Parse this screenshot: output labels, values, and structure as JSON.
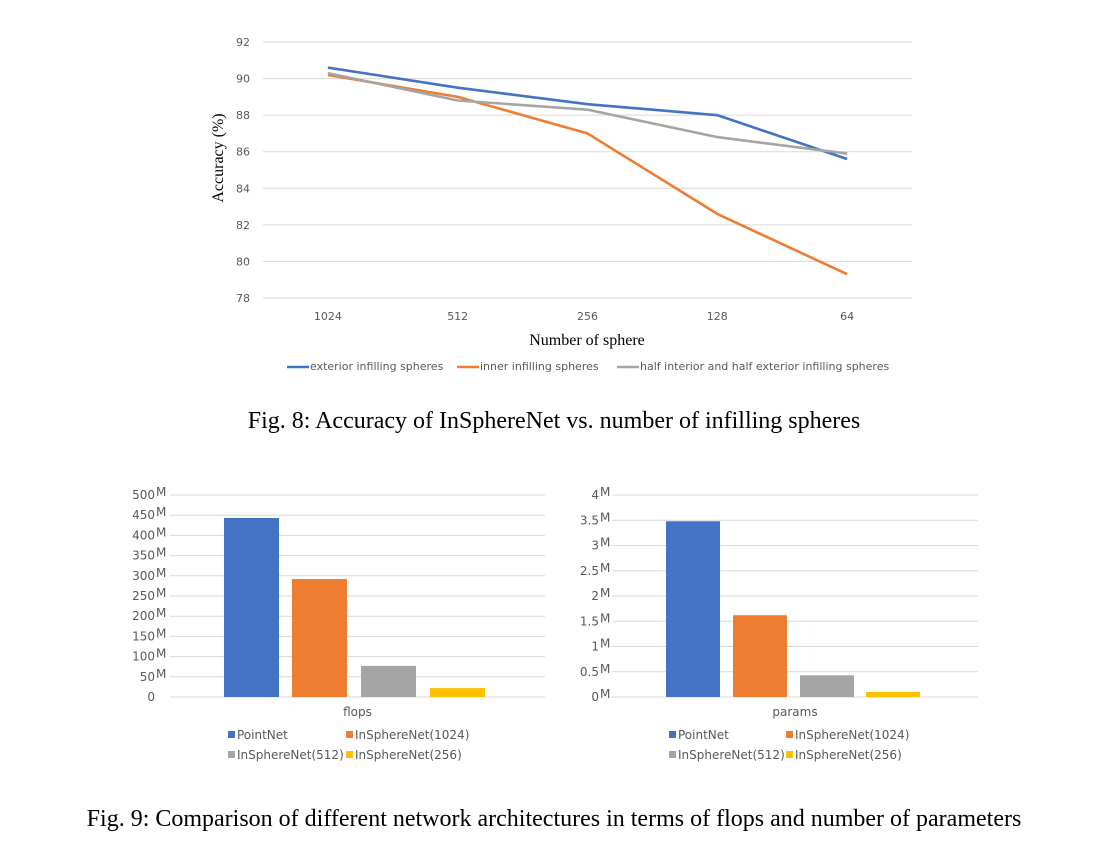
{
  "chart_data": [
    {
      "type": "line",
      "xlabel": "Number of sphere",
      "ylabel": "Accuracy (%)",
      "categories": [
        "1024",
        "512",
        "256",
        "128",
        "64"
      ],
      "ylim": [
        78,
        92
      ],
      "yticks": [
        "78",
        "80",
        "82",
        "84",
        "86",
        "88",
        "90",
        "92"
      ],
      "grid": true,
      "legend_position": "bottom",
      "series": [
        {
          "name": "exterior infilling spheres",
          "color": "#4472C4",
          "values": [
            90.6,
            89.5,
            88.6,
            88.0,
            85.6
          ]
        },
        {
          "name": "inner infilling spheres",
          "color": "#ED7D31",
          "values": [
            90.2,
            89.0,
            87.0,
            82.6,
            79.3
          ]
        },
        {
          "name": "half interior and half exterior infilling spheres",
          "color": "#A5A5A5",
          "values": [
            90.3,
            88.8,
            88.3,
            86.8,
            85.9
          ]
        }
      ]
    },
    {
      "type": "bar",
      "xlabel": "flops",
      "categories": [
        "flops"
      ],
      "ylim": [
        0,
        500
      ],
      "yticks": [
        {
          "v": "500",
          "u": "M"
        },
        {
          "v": "450",
          "u": "M"
        },
        {
          "v": "400",
          "u": "M"
        },
        {
          "v": "350",
          "u": "M"
        },
        {
          "v": "300",
          "u": "M"
        },
        {
          "v": "250",
          "u": "M"
        },
        {
          "v": "200",
          "u": "M"
        },
        {
          "v": "150",
          "u": "M"
        },
        {
          "v": "100",
          "u": "M"
        },
        {
          "v": "50",
          "u": "M"
        },
        {
          "v": "0",
          "u": ""
        }
      ],
      "grid": true,
      "legend_position": "bottom",
      "series": [
        {
          "name": "PointNet",
          "color": "#4472C4",
          "values": [
            443
          ]
        },
        {
          "name": "InSphereNet(1024)",
          "color": "#ED7D31",
          "values": [
            292
          ]
        },
        {
          "name": "InSphereNet(512)",
          "color": "#A5A5A5",
          "values": [
            77
          ]
        },
        {
          "name": "InSphereNet(256)",
          "color": "#FFC000",
          "values": [
            22
          ]
        }
      ]
    },
    {
      "type": "bar",
      "xlabel": "params",
      "categories": [
        "params"
      ],
      "ylim": [
        0,
        4
      ],
      "yticks": [
        {
          "v": "4",
          "u": "M"
        },
        {
          "v": "3.5",
          "u": "M"
        },
        {
          "v": "3",
          "u": "M"
        },
        {
          "v": "2.5",
          "u": "M"
        },
        {
          "v": "2",
          "u": "M"
        },
        {
          "v": "1.5",
          "u": "M"
        },
        {
          "v": "1",
          "u": "M"
        },
        {
          "v": "0.5",
          "u": "M"
        },
        {
          "v": "0",
          "u": "M"
        }
      ],
      "grid": true,
      "legend_position": "bottom",
      "series": [
        {
          "name": "PointNet",
          "color": "#4472C4",
          "values": [
            3.48
          ]
        },
        {
          "name": "InSphereNet(1024)",
          "color": "#ED7D31",
          "values": [
            1.62
          ]
        },
        {
          "name": "InSphereNet(512)",
          "color": "#A5A5A5",
          "values": [
            0.43
          ]
        },
        {
          "name": "InSphereNet(256)",
          "color": "#FFC000",
          "values": [
            0.1
          ]
        }
      ]
    }
  ],
  "captions": {
    "fig8": "Fig. 8: Accuracy of InSphereNet vs. number of infilling spheres",
    "fig9": "Fig. 9: Comparison of different network architectures in terms of flops and number of parameters"
  }
}
